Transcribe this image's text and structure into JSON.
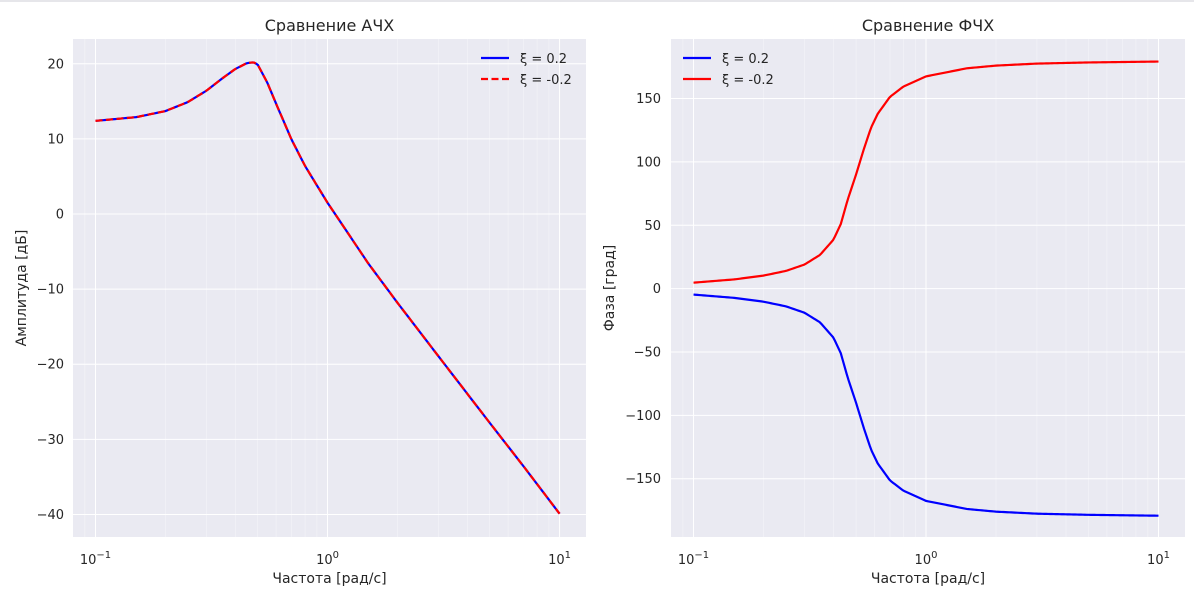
{
  "chart_data": [
    {
      "type": "line",
      "title": "Сравнение АЧХ",
      "xlabel": "Частота [рад/с]",
      "ylabel": "Амплитуда [дБ]",
      "xscale": "log",
      "xlim": [
        0.08,
        13
      ],
      "ylim": [
        -43,
        23.3
      ],
      "xticks": [
        {
          "value": 0.1,
          "base": "10",
          "exp": "−1"
        },
        {
          "value": 1,
          "base": "10",
          "exp": "0"
        },
        {
          "value": 10,
          "base": "10",
          "exp": "1"
        }
      ],
      "yticks": [
        20,
        10,
        0,
        -10,
        -20,
        -30,
        -40
      ],
      "ytick_labels": [
        "20",
        "10",
        "0",
        "−10",
        "−20",
        "−30",
        "−40"
      ],
      "grid": true,
      "legend_position": "top-right",
      "series": [
        {
          "name": "ξ = 0.2",
          "color": "#0000ff",
          "dash": "solid",
          "x": [
            0.1,
            0.15,
            0.2,
            0.25,
            0.3,
            0.35,
            0.4,
            0.45,
            0.48,
            0.5,
            0.55,
            0.6,
            0.7,
            0.8,
            1.0,
            1.5,
            2,
            3,
            5,
            7,
            10
          ],
          "y": [
            12.4,
            12.9,
            13.7,
            14.9,
            16.4,
            18.0,
            19.3,
            20.1,
            20.2,
            19.9,
            17.5,
            14.7,
            9.9,
            6.4,
            1.5,
            -6.6,
            -11.8,
            -18.9,
            -27.8,
            -33.6,
            -39.9
          ]
        },
        {
          "name": "ξ = -0.2",
          "color": "#ff0000",
          "dash": "dashed",
          "x": [
            0.1,
            0.15,
            0.2,
            0.25,
            0.3,
            0.35,
            0.4,
            0.45,
            0.48,
            0.5,
            0.55,
            0.6,
            0.7,
            0.8,
            1.0,
            1.5,
            2,
            3,
            5,
            7,
            10
          ],
          "y": [
            12.4,
            12.9,
            13.7,
            14.9,
            16.4,
            18.0,
            19.3,
            20.1,
            20.2,
            19.9,
            17.5,
            14.7,
            9.9,
            6.4,
            1.5,
            -6.6,
            -11.8,
            -18.9,
            -27.8,
            -33.6,
            -39.9
          ]
        }
      ]
    },
    {
      "type": "line",
      "title": "Сравнение ФЧХ",
      "xlabel": "Частота [рад/с]",
      "ylabel": "Фаза [град]",
      "xscale": "log",
      "xlim": [
        0.08,
        13
      ],
      "ylim": [
        -196,
        197
      ],
      "xticks": [
        {
          "value": 0.1,
          "base": "10",
          "exp": "−1"
        },
        {
          "value": 1,
          "base": "10",
          "exp": "0"
        },
        {
          "value": 10,
          "base": "10",
          "exp": "1"
        }
      ],
      "yticks": [
        150,
        100,
        50,
        0,
        -50,
        -100,
        -150
      ],
      "ytick_labels": [
        "150",
        "100",
        "50",
        "0",
        "−50",
        "−100",
        "−150"
      ],
      "grid": true,
      "legend_position": "top-left",
      "series": [
        {
          "name": "ξ = 0.2",
          "color": "#0000ff",
          "dash": "solid",
          "x": [
            0.1,
            0.15,
            0.2,
            0.25,
            0.3,
            0.35,
            0.4,
            0.43,
            0.46,
            0.5,
            0.54,
            0.58,
            0.62,
            0.7,
            0.8,
            1.0,
            1.5,
            2,
            3,
            5,
            10
          ],
          "y": [
            -4.7,
            -7.3,
            -10.3,
            -14.0,
            -19.0,
            -26.6,
            -38.7,
            -51.0,
            -70.0,
            -90.0,
            -110.0,
            -127.0,
            -138.0,
            -151.4,
            -159.5,
            -167.5,
            -173.9,
            -176.0,
            -177.6,
            -178.5,
            -179.2
          ]
        },
        {
          "name": "ξ = -0.2",
          "color": "#ff0000",
          "dash": "solid",
          "x": [
            0.1,
            0.15,
            0.2,
            0.25,
            0.3,
            0.35,
            0.4,
            0.43,
            0.46,
            0.5,
            0.54,
            0.58,
            0.62,
            0.7,
            0.8,
            1.0,
            1.5,
            2,
            3,
            5,
            10
          ],
          "y": [
            4.7,
            7.3,
            10.3,
            14.0,
            19.0,
            26.6,
            38.7,
            51.0,
            70.0,
            90.0,
            110.0,
            127.0,
            138.0,
            151.4,
            159.5,
            167.5,
            173.9,
            176.0,
            177.6,
            178.5,
            179.2
          ]
        }
      ]
    }
  ]
}
